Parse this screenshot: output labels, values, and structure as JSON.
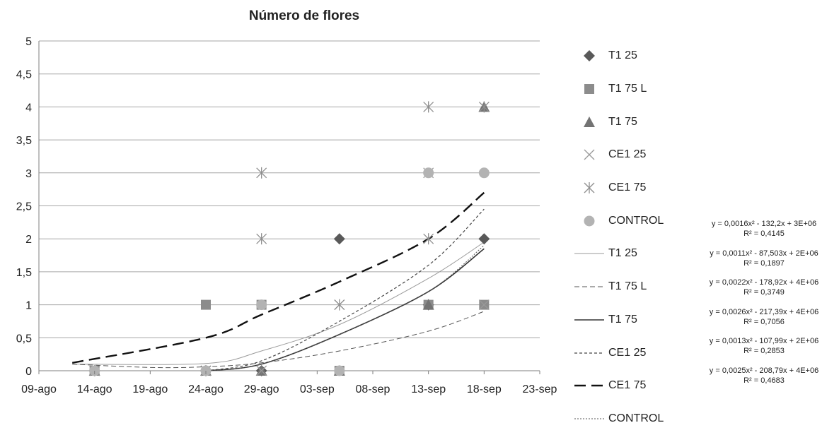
{
  "chart_data": {
    "type": "scatter",
    "title": "Número de flores",
    "xlabel": "",
    "ylabel": "",
    "x_tick_labels": [
      "09-ago",
      "14-ago",
      "19-ago",
      "24-ago",
      "29-ago",
      "03-sep",
      "08-sep",
      "13-sep",
      "18-sep",
      "23-sep"
    ],
    "x_tick_days": [
      0,
      5,
      10,
      15,
      20,
      25,
      30,
      35,
      40,
      45
    ],
    "xlim_days": [
      0,
      45
    ],
    "ylim": [
      0,
      5
    ],
    "y_ticks": [
      0,
      0.5,
      1,
      1.5,
      2,
      2.5,
      3,
      3.5,
      4,
      4.5,
      5
    ],
    "y_tick_labels": [
      "0",
      "0,5",
      "1",
      "1,5",
      "2",
      "2,5",
      "3",
      "3,5",
      "4",
      "4,5",
      "5"
    ],
    "grid": true,
    "legend_position": "right",
    "series": [
      {
        "name": "T1 25",
        "marker": "diamond",
        "color": "#595959",
        "x": [
          "14-ago",
          "24-ago",
          "29-ago",
          "05-sep",
          "13-sep",
          "18-sep"
        ],
        "y": [
          0,
          0,
          0,
          2,
          1,
          2
        ]
      },
      {
        "name": "T1 75 L",
        "marker": "square",
        "color": "#8c8c8c",
        "x": [
          "14-ago",
          "24-ago",
          "29-ago",
          "05-sep",
          "13-sep",
          "18-sep"
        ],
        "y": [
          0,
          1,
          1,
          0,
          1,
          1
        ]
      },
      {
        "name": "T1 75",
        "marker": "triangle",
        "color": "#737373",
        "x": [
          "14-ago",
          "24-ago",
          "29-ago",
          "05-sep",
          "13-sep",
          "18-sep"
        ],
        "y": [
          0,
          0,
          0,
          0,
          1,
          4
        ]
      },
      {
        "name": "CE1 25",
        "marker": "x",
        "color": "#9a9a9a",
        "x": [
          "14-ago",
          "24-ago",
          "29-ago",
          "05-sep",
          "13-sep",
          "18-sep"
        ],
        "y": [
          0,
          0,
          0,
          1,
          3,
          1
        ]
      },
      {
        "name": "CE1 75",
        "marker": "star",
        "color": "#8f8f8f",
        "x": [
          "14-ago",
          "24-ago",
          "29-ago",
          "29-ago",
          "05-sep",
          "13-sep",
          "13-sep",
          "18-sep"
        ],
        "y": [
          0,
          0,
          3,
          2,
          1,
          4,
          2,
          4
        ]
      },
      {
        "name": "CONTROL",
        "marker": "circle",
        "color": "#b3b3b3",
        "x": [
          "14-ago",
          "24-ago",
          "29-ago",
          "05-sep",
          "13-sep",
          "18-sep"
        ],
        "y": [
          0,
          0,
          1,
          0,
          3,
          3
        ]
      }
    ],
    "trendlines": [
      {
        "name": "T1 25",
        "style": "thin-solid",
        "color": "#9a9a9a",
        "x": [
          "12-ago",
          "24-ago",
          "29-ago",
          "05-sep",
          "13-sep",
          "18-sep"
        ],
        "y": [
          0.1,
          0.11,
          0.3,
          0.7,
          1.4,
          1.95
        ],
        "equation": "y = 0,0016x² - 132,2x + 3E+06",
        "r2": "R² = 0,4145"
      },
      {
        "name": "T1 75 L",
        "style": "dashed",
        "color": "#555555",
        "x": [
          "12-ago",
          "19-ago",
          "24-ago",
          "29-ago",
          "05-sep",
          "13-sep",
          "18-sep"
        ],
        "y": [
          0.1,
          0.05,
          0.06,
          0.12,
          0.3,
          0.6,
          0.9
        ],
        "equation": "y = 0,0011x² - 87,503x + 2E+06",
        "r2": "R² = 0,1897"
      },
      {
        "name": "T1 75",
        "style": "solid",
        "color": "#333333",
        "x": [
          "24-ago",
          "29-ago",
          "05-sep",
          "13-sep",
          "18-sep"
        ],
        "y": [
          0,
          0.1,
          0.55,
          1.2,
          1.85
        ],
        "equation": "y = 0,0022x² - 178,92x + 4E+06",
        "r2": "R² = 0,3749"
      },
      {
        "name": "CE1 25",
        "style": "dotted",
        "color": "#444444",
        "x": [
          "24-ago",
          "29-ago",
          "05-sep",
          "13-sep",
          "18-sep"
        ],
        "y": [
          0,
          0.15,
          0.75,
          1.6,
          2.45
        ],
        "equation": "y = 0,0026x² - 217,39x + 4E+06",
        "r2": "R² = 0,7056"
      },
      {
        "name": "CE1 75",
        "style": "long-dash",
        "color": "#111111",
        "x": [
          "12-ago",
          "24-ago",
          "29-ago",
          "05-sep",
          "13-sep",
          "18-sep"
        ],
        "y": [
          0.12,
          0.5,
          0.85,
          1.35,
          2.0,
          2.7
        ],
        "equation": "y = 0,0013x² - 107,99x + 2E+06",
        "r2": "R² = 0,2853"
      },
      {
        "name": "CONTROL",
        "style": "fine-dotted",
        "color": "#555555",
        "x": [
          "24-ago",
          "29-ago",
          "05-sep",
          "13-sep",
          "18-sep"
        ],
        "y": [
          0,
          0.1,
          0.55,
          1.2,
          1.9
        ],
        "equation": "y = 0,0025x² - 208,79x + 4E+06",
        "r2": "R² = 0,4683"
      }
    ]
  }
}
